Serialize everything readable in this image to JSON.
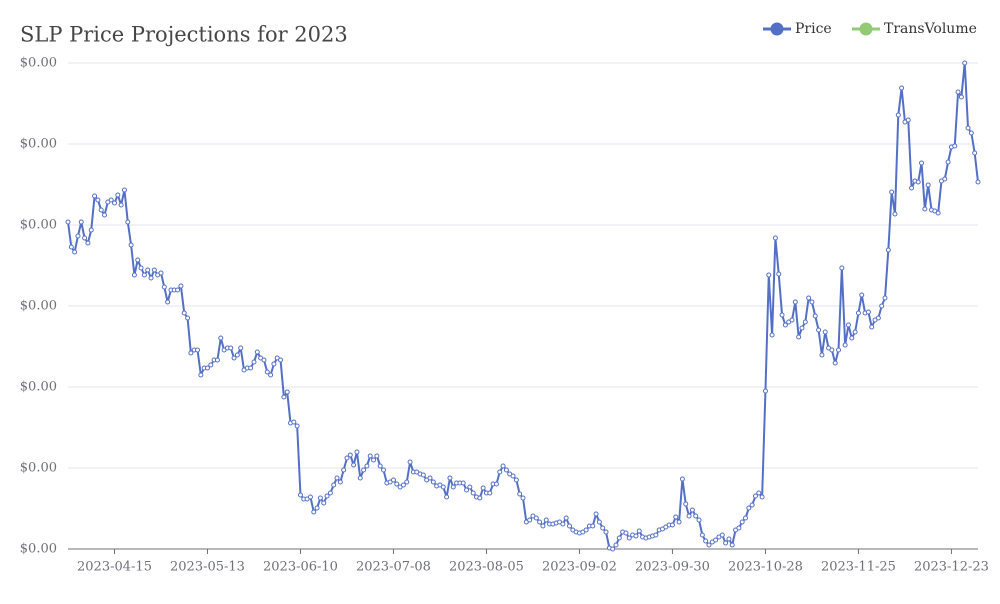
{
  "chart_data": {
    "type": "line",
    "title": "SLP Price Projections for 2023",
    "categories": [
      null,
      null,
      null,
      null,
      null,
      null,
      null,
      null,
      null,
      null,
      null,
      null,
      null,
      null,
      "2023-04-15",
      null,
      null,
      null,
      null,
      null,
      null,
      null,
      null,
      null,
      null,
      null,
      null,
      null,
      null,
      null,
      null,
      null,
      null,
      null,
      null,
      null,
      null,
      null,
      null,
      null,
      null,
      null,
      "2023-05-13",
      null,
      null,
      null,
      null,
      null,
      null,
      null,
      null,
      null,
      null,
      null,
      null,
      null,
      null,
      null,
      null,
      null,
      null,
      null,
      null,
      null,
      null,
      null,
      null,
      null,
      null,
      null,
      "2023-06-10",
      null,
      null,
      null,
      null,
      null,
      null,
      null,
      null,
      null,
      null,
      null,
      null,
      null,
      null,
      null,
      null,
      null,
      null,
      null,
      null,
      null,
      null,
      null,
      null,
      null,
      null,
      null,
      "2023-07-08",
      null,
      null,
      null,
      null,
      null,
      null,
      null,
      null,
      null,
      null,
      null,
      null,
      null,
      null,
      null,
      null,
      null,
      null,
      null,
      null,
      null,
      null,
      null,
      null,
      null,
      null,
      null,
      "2023-08-05",
      null,
      null,
      null,
      null,
      null,
      null,
      null,
      null,
      null,
      null,
      null,
      null,
      null,
      null,
      null,
      null,
      null,
      null,
      null,
      null,
      null,
      null,
      null,
      null,
      null,
      null,
      null,
      "2023-09-02",
      null,
      null,
      null,
      null,
      null,
      null,
      null,
      null,
      null,
      null,
      null,
      null,
      null,
      null,
      null,
      null,
      null,
      null,
      null,
      null,
      null,
      null,
      null,
      null,
      null,
      null,
      null,
      "2023-09-30",
      null,
      null,
      null,
      null,
      null,
      null,
      null,
      null,
      null,
      null,
      null,
      null,
      null,
      null,
      null,
      null,
      null,
      null,
      null,
      null,
      null,
      null,
      null,
      null,
      null,
      null,
      null,
      "2023-10-28",
      null,
      null,
      null,
      null,
      null,
      null,
      null,
      null,
      null,
      null,
      null,
      null,
      null,
      null,
      null,
      null,
      null,
      null,
      null,
      null,
      null,
      null,
      null,
      null,
      null,
      null,
      null,
      "2023-11-25",
      null,
      null,
      null,
      null,
      null,
      null,
      null,
      null,
      null,
      null,
      null,
      null,
      null,
      null,
      null,
      null,
      null,
      null,
      null,
      null,
      null,
      null,
      null,
      null,
      null,
      null,
      null,
      "2023-12-23",
      null,
      null,
      null,
      null,
      null,
      null,
      null,
      null
    ],
    "series": [
      {
        "name": "Price",
        "color": "#5470c6",
        "values": [
          0.002935,
          0.00281,
          0.002785,
          0.002865,
          0.002935,
          0.002855,
          0.00283,
          0.002895,
          0.003065,
          0.003045,
          0.002995,
          0.00297,
          0.003035,
          0.003045,
          0.00303,
          0.00307,
          0.00302,
          0.003095,
          0.002935,
          0.00282,
          0.00267,
          0.002745,
          0.002705,
          0.00267,
          0.002695,
          0.002655,
          0.002695,
          0.00267,
          0.00268,
          0.00261,
          0.002535,
          0.002595,
          0.002595,
          0.002595,
          0.002615,
          0.00248,
          0.002455,
          0.00228,
          0.002295,
          0.002295,
          0.00217,
          0.002205,
          0.002205,
          0.00222,
          0.002245,
          0.002245,
          0.002355,
          0.002295,
          0.002305,
          0.002305,
          0.002255,
          0.00227,
          0.002305,
          0.002195,
          0.002205,
          0.002205,
          0.002235,
          0.002285,
          0.002255,
          0.002245,
          0.002185,
          0.00217,
          0.002225,
          0.002255,
          0.002245,
          0.00206,
          0.002085,
          0.00193,
          0.001935,
          0.001915,
          0.00157,
          0.00155,
          0.00155,
          0.00156,
          0.001485,
          0.001505,
          0.001555,
          0.00153,
          0.001565,
          0.00158,
          0.00162,
          0.001655,
          0.001635,
          0.001695,
          0.001755,
          0.00177,
          0.00172,
          0.001785,
          0.001655,
          0.001695,
          0.001715,
          0.001765,
          0.001745,
          0.001765,
          0.001715,
          0.001695,
          0.00163,
          0.001635,
          0.001645,
          0.001625,
          0.00161,
          0.00162,
          0.001635,
          0.001735,
          0.001685,
          0.001685,
          0.001675,
          0.00167,
          0.001645,
          0.001655,
          0.001635,
          0.001615,
          0.00162,
          0.00161,
          0.00156,
          0.001655,
          0.00161,
          0.00163,
          0.00163,
          0.00163,
          0.001595,
          0.00161,
          0.00158,
          0.00156,
          0.001555,
          0.001605,
          0.00158,
          0.00158,
          0.001625,
          0.001625,
          0.001685,
          0.001715,
          0.001695,
          0.001675,
          0.001665,
          0.001645,
          0.001575,
          0.001555,
          0.001435,
          0.001445,
          0.001465,
          0.001455,
          0.001435,
          0.001415,
          0.001445,
          0.001425,
          0.001425,
          0.00143,
          0.001435,
          0.001425,
          0.001455,
          0.001415,
          0.001395,
          0.001385,
          0.00138,
          0.001385,
          0.001395,
          0.001415,
          0.001415,
          0.001475,
          0.001435,
          0.001405,
          0.001385,
          0.001305,
          0.0013,
          0.00132,
          0.001355,
          0.001385,
          0.00138,
          0.001355,
          0.00137,
          0.001365,
          0.00139,
          0.00136,
          0.001355,
          0.00136,
          0.001365,
          0.00137,
          0.001395,
          0.0014,
          0.00141,
          0.00142,
          0.00142,
          0.00146,
          0.001435,
          0.00165,
          0.001525,
          0.001465,
          0.001495,
          0.001465,
          0.001445,
          0.00137,
          0.00134,
          0.00132,
          0.001335,
          0.001345,
          0.00136,
          0.00137,
          0.00133,
          0.00135,
          0.00132,
          0.001395,
          0.001405,
          0.001435,
          0.001455,
          0.001505,
          0.00152,
          0.001565,
          0.00158,
          0.00156,
          0.00209,
          0.00267,
          0.00237,
          0.002855,
          0.002675,
          0.00247,
          0.00242,
          0.002435,
          0.002445,
          0.002535,
          0.00236,
          0.002405,
          0.002435,
          0.002555,
          0.002535,
          0.002465,
          0.002395,
          0.00227,
          0.002385,
          0.002305,
          0.002295,
          0.00223,
          0.002295,
          0.002705,
          0.00232,
          0.00242,
          0.002355,
          0.002385,
          0.00248,
          0.00257,
          0.00248,
          0.002485,
          0.00241,
          0.002445,
          0.002455,
          0.002515,
          0.002555,
          0.002795,
          0.003085,
          0.002975,
          0.00347,
          0.003605,
          0.003435,
          0.003445,
          0.003105,
          0.00314,
          0.003135,
          0.00323,
          0.003,
          0.00312,
          0.002995,
          0.00299,
          0.00298,
          0.00314,
          0.00315,
          0.003235,
          0.00331,
          0.003315,
          0.003585,
          0.00356,
          0.00373,
          0.003405,
          0.00338,
          0.00328,
          0.003135
        ]
      },
      {
        "name": "TransVolume",
        "color": "#91cc75"
      }
    ],
    "ylim": [
      0.0013,
      0.00373
    ],
    "yticks": [
      {
        "value": 0.0013,
        "label": "$0.00"
      },
      {
        "value": 0.001705,
        "label": "$0.00"
      },
      {
        "value": 0.00211,
        "label": "$0.00"
      },
      {
        "value": 0.002515,
        "label": "$0.00"
      },
      {
        "value": 0.00292,
        "label": "$0.00"
      },
      {
        "value": 0.003325,
        "label": "$0.00"
      },
      {
        "value": 0.00373,
        "label": "$0.00"
      }
    ],
    "grid": true,
    "legend": "top-right"
  }
}
